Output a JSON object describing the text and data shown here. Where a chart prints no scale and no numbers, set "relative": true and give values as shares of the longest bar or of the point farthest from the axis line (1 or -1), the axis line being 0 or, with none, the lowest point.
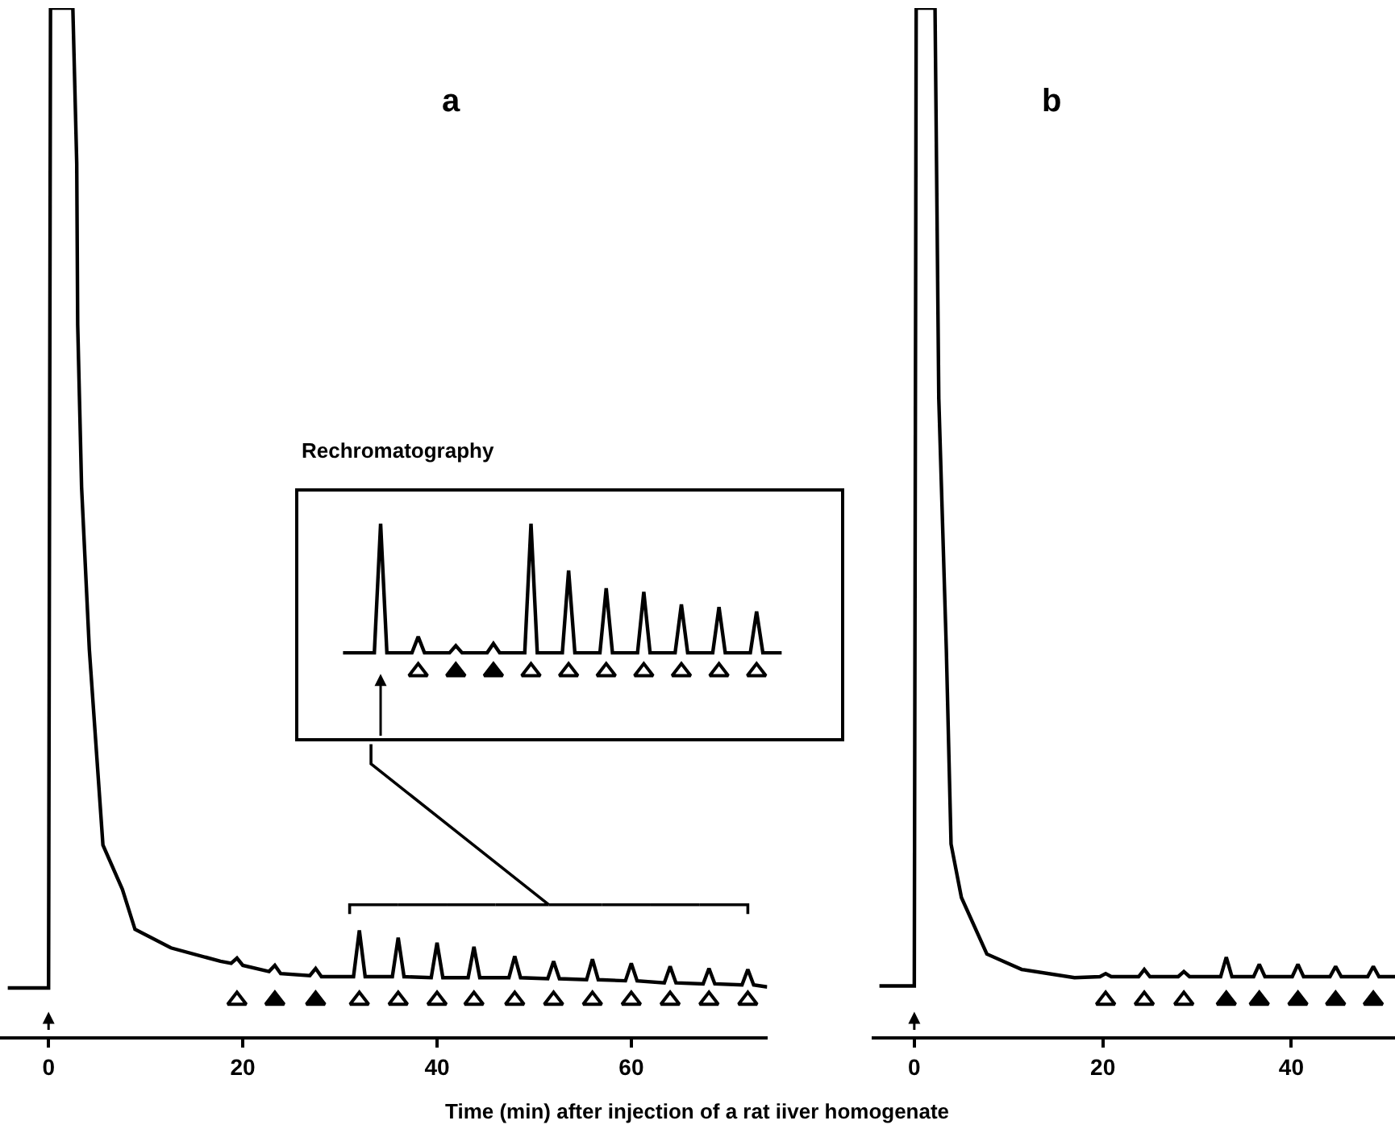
{
  "chart_data": [
    {
      "type": "line",
      "title": "a",
      "xlabel": "Time (min) after injection of a rat iiver homogenate",
      "relative": true,
      "xlim": [
        -5,
        74
      ],
      "xticks": [
        0,
        20,
        40,
        60
      ],
      "legend": false,
      "tick_labels": "x",
      "series": [
        {
          "color": "#000000",
          "x": [
            -4.2,
            0,
            0.2,
            2.5,
            2.9,
            3.0,
            3.4,
            4.2,
            5.6,
            7.6,
            8.9,
            12.6,
            17.7,
            18.8,
            19.4,
            20,
            22.7,
            23.3,
            23.9,
            26.9,
            27.5,
            28.1,
            31.4,
            32,
            32.6,
            35.4,
            36,
            36.6,
            39.4,
            40,
            40.6,
            43.2,
            43.8,
            44.4,
            47.4,
            48,
            48.6,
            51.4,
            52,
            52.6,
            55.4,
            56,
            56.6,
            59.4,
            60,
            60.6,
            63.4,
            64,
            64.6,
            67.4,
            68,
            68.6,
            71.4,
            72,
            72.6,
            74
          ],
          "values": [
            0.047,
            0.047,
            1,
            1,
            0.849,
            0.692,
            0.534,
            0.376,
            0.186,
            0.143,
            0.104,
            0.086,
            0.073,
            0.071,
            0.076,
            0.069,
            0.063,
            0.069,
            0.061,
            0.059,
            0.066,
            0.058,
            0.058,
            0.103,
            0.058,
            0.058,
            0.096,
            0.058,
            0.057,
            0.091,
            0.057,
            0.057,
            0.087,
            0.057,
            0.057,
            0.078,
            0.057,
            0.056,
            0.073,
            0.056,
            0.055,
            0.075,
            0.055,
            0.054,
            0.071,
            0.054,
            0.052,
            0.068,
            0.052,
            0.051,
            0.066,
            0.051,
            0.05,
            0.065,
            0.05,
            0.048
          ]
        }
      ]
    },
    {
      "type": "line",
      "title": "b",
      "relative": true,
      "xlim": [
        -4.5,
        51
      ],
      "xticks": [
        0,
        20,
        40
      ],
      "legend": false,
      "tick_labels": "x",
      "series": [
        {
          "color": "#000000",
          "x": [
            -3.7,
            0,
            0.2,
            2.2,
            2.6,
            3.4,
            3.9,
            5.0,
            7.7,
            11.4,
            17,
            19.7,
            20.3,
            20.9,
            23.8,
            24.4,
            25,
            28,
            28.6,
            29.2,
            32.5,
            33.1,
            33.7,
            36,
            36.6,
            37.2,
            40.1,
            40.7,
            41.3,
            44.1,
            44.7,
            45.3,
            48.1,
            48.7,
            49.3,
            51
          ],
          "values": [
            0.049,
            0.049,
            1,
            1,
            0.62,
            0.376,
            0.187,
            0.135,
            0.08,
            0.065,
            0.057,
            0.058,
            0.061,
            0.058,
            0.058,
            0.065,
            0.058,
            0.058,
            0.063,
            0.058,
            0.058,
            0.077,
            0.058,
            0.058,
            0.07,
            0.058,
            0.058,
            0.07,
            0.058,
            0.058,
            0.068,
            0.058,
            0.058,
            0.068,
            0.058,
            0.058
          ]
        }
      ]
    },
    {
      "type": "line",
      "title": "Rechromatography",
      "relative": true,
      "legend": false,
      "tick_labels": false,
      "categories": [
        null,
        null,
        null,
        null,
        null,
        null,
        null,
        null,
        null,
        null,
        null,
        null,
        null,
        null,
        null,
        null,
        null,
        null,
        null,
        null,
        null,
        null,
        null,
        null,
        null,
        null,
        null,
        null,
        null,
        null,
        null,
        null,
        null,
        null,
        null,
        null,
        null,
        null,
        null,
        null,
        null,
        null,
        null,
        null,
        null,
        null,
        null,
        null,
        null,
        null,
        null,
        null,
        null,
        null,
        null,
        null,
        null,
        null,
        null,
        null,
        null,
        null,
        null,
        null,
        null,
        null,
        null,
        null,
        null,
        null,
        null
      ],
      "series": [
        {
          "color": "#000000",
          "values": [
            0.398,
            0.398,
            0.398,
            0.398,
            0.398,
            0.398,
            1,
            0.398,
            0.398,
            0.398,
            0.398,
            0.398,
            0.473,
            0.398,
            0.398,
            0.398,
            0.398,
            0.398,
            0.431,
            0.398,
            0.398,
            0.398,
            0.398,
            0.398,
            0.441,
            0.398,
            0.398,
            0.398,
            0.398,
            0.398,
            1,
            0.398,
            0.398,
            0.398,
            0.398,
            0.398,
            0.782,
            0.398,
            0.398,
            0.398,
            0.398,
            0.398,
            0.699,
            0.398,
            0.398,
            0.398,
            0.398,
            0.398,
            0.682,
            0.398,
            0.398,
            0.398,
            0.398,
            0.398,
            0.624,
            0.398,
            0.398,
            0.398,
            0.398,
            0.398,
            0.611,
            0.398,
            0.398,
            0.398,
            0.398,
            0.398,
            0.591,
            0.398,
            0.398,
            0.398,
            0.398
          ]
        }
      ]
    }
  ]
}
